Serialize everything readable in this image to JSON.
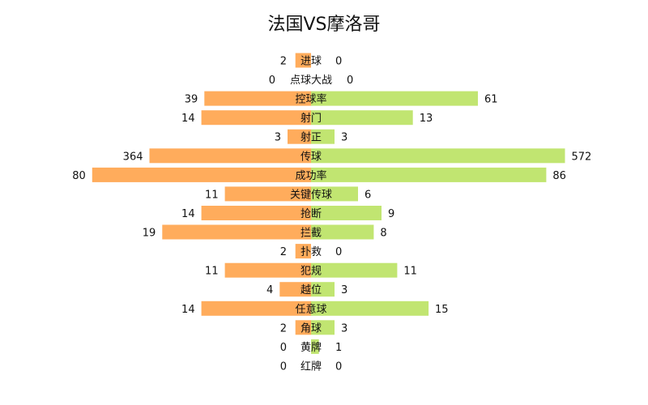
{
  "chart_data": {
    "type": "bar",
    "title": "法国VS摩洛哥",
    "colors": {
      "left": "#FFAC5C",
      "right": "#C1E571"
    },
    "series": [
      {
        "name": "",
        "side": "left",
        "values": [
          2,
          0,
          39,
          14,
          3,
          364,
          80,
          11,
          14,
          19,
          2,
          11,
          4,
          14,
          2,
          0,
          0
        ]
      },
      {
        "name": "",
        "side": "right",
        "values": [
          0,
          0,
          61,
          13,
          3,
          572,
          86,
          6,
          9,
          8,
          0,
          11,
          3,
          15,
          3,
          1,
          0
        ]
      }
    ],
    "categories": [
      "进球",
      "点球大战",
      "控球率",
      "射门",
      "射正",
      "传球",
      "成功率",
      "关键传球",
      "抢断",
      "拦截",
      "扑救",
      "犯规",
      "越位",
      "任意球",
      "角球",
      "黄牌",
      "红牌"
    ],
    "bar_lengths": [
      [
        2,
        0
      ],
      [
        0,
        0
      ],
      [
        39,
        61
      ],
      [
        14,
        13
      ],
      [
        3,
        3
      ],
      [
        364,
        572
      ],
      [
        80,
        86
      ],
      [
        11,
        6
      ],
      [
        14,
        9
      ],
      [
        19,
        8
      ],
      [
        2,
        0
      ],
      [
        11,
        11
      ],
      [
        4,
        3
      ],
      [
        14,
        15
      ],
      [
        2,
        3
      ],
      [
        0,
        1
      ],
      [
        0,
        0
      ]
    ],
    "grid": false,
    "legend": "none"
  }
}
